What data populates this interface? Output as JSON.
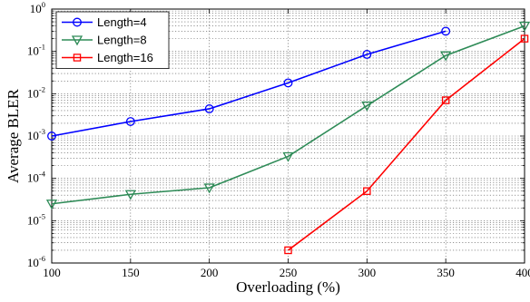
{
  "chart_data": {
    "type": "line",
    "xlabel": "Overloading (%)",
    "ylabel": "Average BLER",
    "xlim": [
      100,
      400
    ],
    "ylim": [
      1e-06,
      1
    ],
    "yscale": "log",
    "grid": true,
    "legend_position": "top-left",
    "x_ticks": [
      "100",
      "150",
      "200",
      "250",
      "300",
      "350",
      "400"
    ],
    "y_tick_base": "10",
    "y_tick_exponents": [
      "0",
      "-1",
      "-2",
      "-3",
      "-4",
      "-5",
      "-6"
    ],
    "series": [
      {
        "name": "Length=4",
        "color": "#0000ff",
        "marker": "circle",
        "x": [
          100,
          150,
          200,
          250,
          300,
          350
        ],
        "y": [
          0.001,
          0.0022,
          0.0044,
          0.018,
          0.085,
          0.3
        ]
      },
      {
        "name": "Length=8",
        "color": "#2e8b57",
        "marker": "triangle-down",
        "x": [
          100,
          150,
          200,
          250,
          300,
          350,
          400
        ],
        "y": [
          2.5e-05,
          4.2e-05,
          6e-05,
          0.00033,
          0.0052,
          0.08,
          0.4
        ]
      },
      {
        "name": "Length=16",
        "color": "#ff0000",
        "marker": "square",
        "x": [
          250,
          300,
          350,
          400
        ],
        "y": [
          2e-06,
          5e-05,
          0.007,
          0.2
        ]
      }
    ]
  }
}
